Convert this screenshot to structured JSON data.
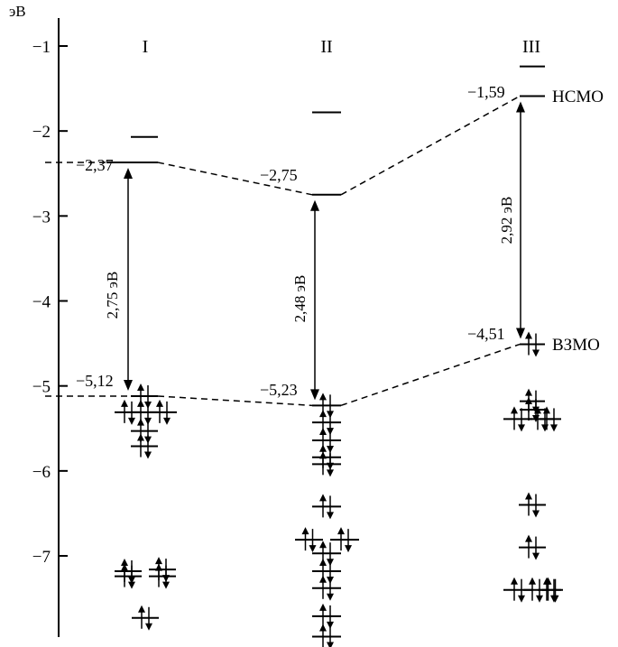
{
  "diagram": {
    "unit_label": "эВ",
    "axis": {
      "ticks": [
        {
          "value": -1,
          "label": "−1"
        },
        {
          "value": -2,
          "label": "−2"
        },
        {
          "value": -3,
          "label": "−3"
        },
        {
          "value": -4,
          "label": "−4"
        },
        {
          "value": -5,
          "label": "−5"
        },
        {
          "value": -6,
          "label": "−6"
        },
        {
          "value": -7,
          "label": "−7"
        }
      ]
    },
    "columns": [
      {
        "id": "I",
        "label": "I",
        "lumo_label": "−2,37",
        "homo_label": "−5,12",
        "gap_label": "2,75 эВ",
        "lumo": -2.37,
        "homo": -5.12,
        "empty_levels": [
          -2.07,
          -2.37
        ],
        "occupied_levels": [
          -5.12,
          -5.31,
          -5.31,
          -5.31,
          -5.53,
          -5.71,
          -7.18,
          -7.24,
          -7.16,
          -7.24,
          -7.73
        ]
      },
      {
        "id": "II",
        "label": "II",
        "lumo_label": "−2,75",
        "homo_label": "−5,23",
        "gap_label": "2,48 эВ",
        "lumo": -2.75,
        "homo": -5.23,
        "empty_levels": [
          -1.78,
          -2.75
        ],
        "occupied_levels": [
          -5.23,
          -5.43,
          -5.64,
          -5.84,
          -5.92,
          -6.42,
          -6.81,
          -6.81,
          -6.97,
          -7.18,
          -7.38,
          -7.71,
          -7.95
        ]
      },
      {
        "id": "III",
        "label": "III",
        "lumo_label": "−1,59",
        "homo_label": "−4,51",
        "gap_label": "2,92 эВ",
        "lumo": -1.59,
        "homo": -4.51,
        "empty_levels": [
          -1.24,
          -1.59
        ],
        "occupied_levels": [
          -4.51,
          -5.18,
          -5.28,
          -5.39,
          -5.39,
          -5.39,
          -6.4,
          -6.9,
          -7.4,
          -7.4,
          -7.4,
          -7.4
        ]
      }
    ],
    "lumo_tag": "НСМО",
    "homo_tag": "ВЗМО"
  }
}
